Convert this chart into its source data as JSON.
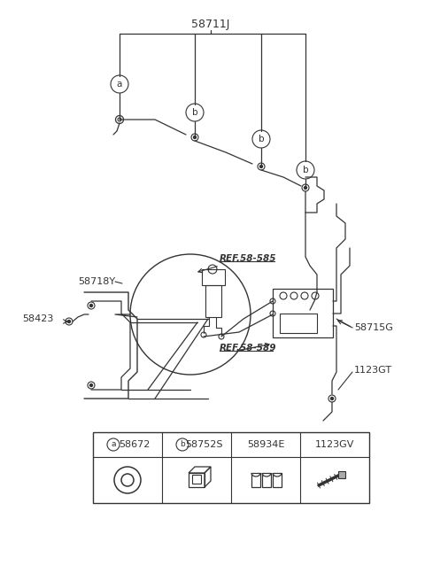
{
  "bg_color": "#ffffff",
  "lc": "#333333",
  "label_58711J": "58711J",
  "label_a": "a",
  "label_b": "b",
  "label_58718Y": "58718Y",
  "label_58423": "58423",
  "label_REF585": "REF.58-585",
  "label_REF589": "REF.58-589",
  "label_58715G": "58715G",
  "label_1123GT": "1123GT",
  "nums_top": [
    "58672",
    "58752S",
    "58934E",
    "1123GV"
  ],
  "codes_top": [
    "a",
    "b",
    "",
    ""
  ]
}
